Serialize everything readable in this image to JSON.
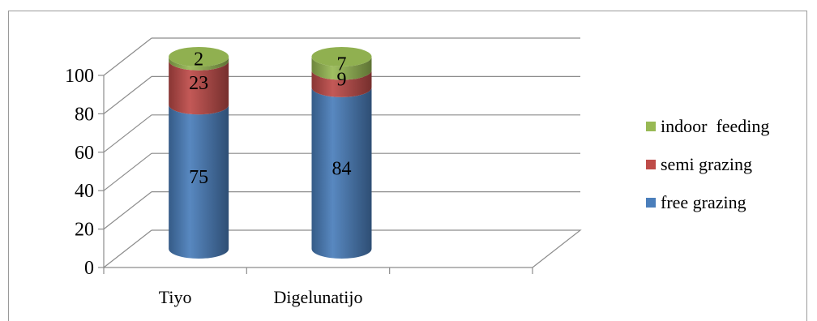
{
  "chart_data": {
    "type": "bar",
    "stacked": true,
    "three_d": true,
    "categories": [
      "Tiyo",
      "Digelunatijo"
    ],
    "series": [
      {
        "name": "free grazing",
        "color": "#4a7ebb",
        "values": [
          75,
          84
        ]
      },
      {
        "name": "semi grazing",
        "color": "#be4b48",
        "values": [
          23,
          9
        ]
      },
      {
        "name": "indoor  feeding",
        "color": "#98b954",
        "values": [
          2,
          7
        ]
      }
    ],
    "ylim": [
      0,
      100
    ],
    "yticks": [
      "0",
      "20",
      "40",
      "60",
      "80",
      "100"
    ],
    "grid": true,
    "legend_position": "right"
  }
}
